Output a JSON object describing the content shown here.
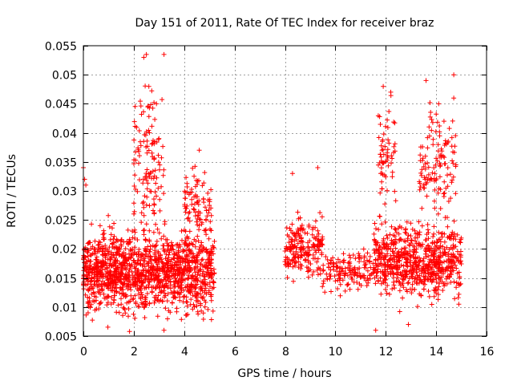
{
  "chart_data": {
    "type": "scatter",
    "title": "Day 151 of 2011, Rate Of TEC Index for receiver braz",
    "xlabel": "GPS time / hours",
    "ylabel": "ROTI / TECUs",
    "xlim": [
      0,
      16
    ],
    "ylim": [
      0.005,
      0.055
    ],
    "xticks": [
      0,
      2,
      4,
      6,
      8,
      10,
      12,
      14,
      16
    ],
    "yticks": [
      0.005,
      0.01,
      0.015,
      0.02,
      0.025,
      0.03,
      0.035,
      0.04,
      0.045,
      0.05,
      0.055
    ],
    "xtick_labels": [
      "0",
      "2",
      "4",
      "6",
      "8",
      "10",
      "12",
      "14",
      "16"
    ],
    "ytick_labels": [
      "0.005",
      "0.01",
      "0.015",
      "0.02",
      "0.025",
      "0.03",
      "0.035",
      "0.04",
      "0.045",
      "0.05",
      "0.055"
    ],
    "grid": true,
    "marker": "+",
    "marker_color": "#ff0000",
    "series": [
      {
        "name": "ROTI",
        "clusters": [
          {
            "x_range": [
              0.0,
              5.2
            ],
            "y_median": 0.016,
            "y_spread": 0.008,
            "count": 1400
          },
          {
            "x_range": [
              2.0,
              3.2
            ],
            "y_median": 0.035,
            "y_spread": 0.012,
            "count": 120
          },
          {
            "x_range": [
              4.0,
              5.1
            ],
            "y_median": 0.028,
            "y_spread": 0.006,
            "count": 80
          },
          {
            "x_range": [
              8.0,
              9.5
            ],
            "y_median": 0.02,
            "y_spread": 0.006,
            "count": 200
          },
          {
            "x_range": [
              9.5,
              11.5
            ],
            "y_median": 0.016,
            "y_spread": 0.004,
            "count": 150
          },
          {
            "x_range": [
              11.5,
              15.0
            ],
            "y_median": 0.018,
            "y_spread": 0.007,
            "count": 700
          },
          {
            "x_range": [
              11.7,
              12.4
            ],
            "y_median": 0.037,
            "y_spread": 0.01,
            "count": 60
          },
          {
            "x_range": [
              13.3,
              14.8
            ],
            "y_median": 0.035,
            "y_spread": 0.011,
            "count": 120
          }
        ],
        "sample_points": [
          [
            0.0,
            0.034
          ],
          [
            0.05,
            0.032
          ],
          [
            0.1,
            0.031
          ],
          [
            2.4,
            0.053
          ],
          [
            2.5,
            0.0535
          ],
          [
            3.2,
            0.0535
          ],
          [
            2.6,
            0.048
          ],
          [
            2.9,
            0.045
          ],
          [
            3.0,
            0.039
          ],
          [
            4.6,
            0.037
          ],
          [
            3.2,
            0.006
          ],
          [
            8.3,
            0.033
          ],
          [
            9.3,
            0.034
          ],
          [
            11.9,
            0.048
          ],
          [
            12.2,
            0.047
          ],
          [
            13.6,
            0.049
          ],
          [
            14.1,
            0.045
          ],
          [
            14.7,
            0.05
          ],
          [
            14.7,
            0.046
          ],
          [
            11.6,
            0.006
          ],
          [
            12.9,
            0.007
          ],
          [
            14.9,
            0.0105
          ]
        ]
      }
    ]
  }
}
